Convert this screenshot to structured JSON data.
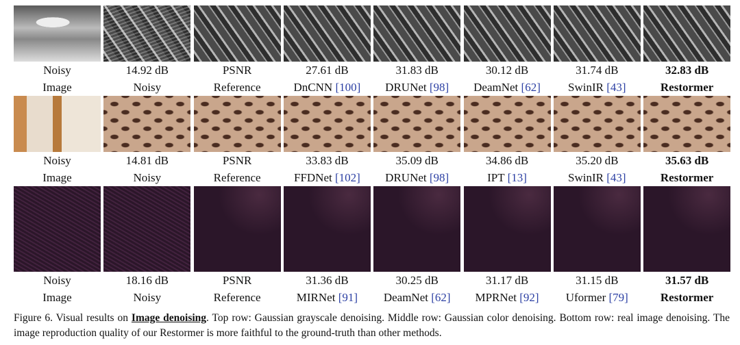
{
  "figure": {
    "rows": [
      {
        "cells": [
          {
            "top": "Noisy",
            "bottom": "Image"
          },
          {
            "top": "14.92 dB",
            "bottom": "Noisy"
          },
          {
            "top": "PSNR",
            "bottom": "Reference"
          },
          {
            "top": "27.61 dB",
            "bottom": "DnCNN",
            "cite": "[100]"
          },
          {
            "top": "31.83 dB",
            "bottom": "DRUNet",
            "cite": "[98]"
          },
          {
            "top": "30.12 dB",
            "bottom": "DeamNet",
            "cite": "[62]"
          },
          {
            "top": "31.74 dB",
            "bottom": "SwinIR",
            "cite": "[43]"
          },
          {
            "top": "32.83 dB",
            "bottom": "Restormer"
          }
        ]
      },
      {
        "cells": [
          {
            "top": "Noisy",
            "bottom": "Image"
          },
          {
            "top": "14.81 dB",
            "bottom": "Noisy"
          },
          {
            "top": "PSNR",
            "bottom": "Reference"
          },
          {
            "top": "33.83 dB",
            "bottom": "FFDNet",
            "cite": "[102]"
          },
          {
            "top": "35.09 dB",
            "bottom": "DRUNet",
            "cite": "[98]"
          },
          {
            "top": "34.86 dB",
            "bottom": "IPT",
            "cite": "[13]"
          },
          {
            "top": "35.20 dB",
            "bottom": "SwinIR",
            "cite": "[43]"
          },
          {
            "top": "35.63 dB",
            "bottom": "Restormer"
          }
        ]
      },
      {
        "cells": [
          {
            "top": "Noisy",
            "bottom": "Image"
          },
          {
            "top": "18.16 dB",
            "bottom": "Noisy"
          },
          {
            "top": "PSNR",
            "bottom": "Reference"
          },
          {
            "top": "31.36 dB",
            "bottom": "MIRNet",
            "cite": "[91]"
          },
          {
            "top": "30.25 dB",
            "bottom": "DeamNet",
            "cite": "[62]"
          },
          {
            "top": "31.17 dB",
            "bottom": "MPRNet",
            "cite": "[92]"
          },
          {
            "top": "31.15 dB",
            "bottom": "Uformer",
            "cite": "[79]"
          },
          {
            "top": "31.57 dB",
            "bottom": "Restormer"
          }
        ]
      }
    ],
    "caption": {
      "label": "Figure 6.",
      "lead": "Visual results on",
      "emphasis": "Image denoising",
      "text": ". Top row: Gaussian grayscale denoising. Middle row: Gaussian color denoising. Bottom row: real image denoising. The image reproduction quality of our Restormer is more faithful to the ground-truth than other methods."
    }
  }
}
